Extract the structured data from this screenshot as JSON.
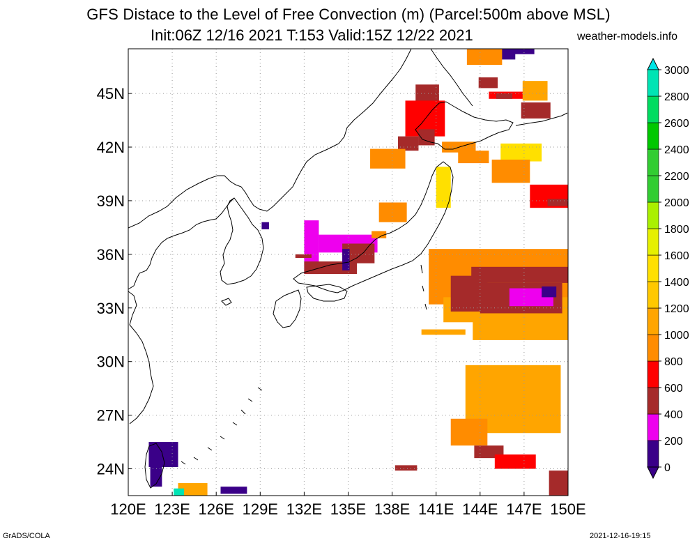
{
  "title": {
    "line1": "GFS Distace to the Level of Free Convection (m) (Parcel:500m above MSL)",
    "line2": "Init:06Z 12/16 2021 T:153 Valid:15Z 12/22 2021",
    "site": "weather-models.info"
  },
  "footer": {
    "left": "GrADS/COLA",
    "right": "2021-12-16-19:15"
  },
  "map": {
    "lon_min": 120,
    "lon_max": 150,
    "lat_min": 22.5,
    "lat_max": 47.5,
    "lon_ticks": [
      {
        "v": 120,
        "label": "120E"
      },
      {
        "v": 123,
        "label": "123E"
      },
      {
        "v": 126,
        "label": "126E"
      },
      {
        "v": 129,
        "label": "129E"
      },
      {
        "v": 132,
        "label": "132E"
      },
      {
        "v": 135,
        "label": "135E"
      },
      {
        "v": 138,
        "label": "138E"
      },
      {
        "v": 141,
        "label": "141E"
      },
      {
        "v": 144,
        "label": "144E"
      },
      {
        "v": 147,
        "label": "147E"
      },
      {
        "v": 150,
        "label": "150E"
      }
    ],
    "lat_ticks": [
      {
        "v": 24,
        "label": "24N"
      },
      {
        "v": 27,
        "label": "27N"
      },
      {
        "v": 30,
        "label": "30N"
      },
      {
        "v": 33,
        "label": "33N"
      },
      {
        "v": 36,
        "label": "36N"
      },
      {
        "v": 39,
        "label": "39N"
      },
      {
        "v": 42,
        "label": "42N"
      },
      {
        "v": 45,
        "label": "45N"
      }
    ],
    "patches": [
      {
        "lon": [
          139.6,
          141.2
        ],
        "lat": [
          44.3,
          45.5
        ],
        "val": 500
      },
      {
        "lon": [
          138.9,
          141.6
        ],
        "lat": [
          42.6,
          44.6
        ],
        "val": 700
      },
      {
        "lon": [
          139.8,
          140.9
        ],
        "lat": [
          42.1,
          43.0
        ],
        "val": 500
      },
      {
        "lon": [
          138.4,
          139.8
        ],
        "lat": [
          41.8,
          42.6
        ],
        "val": 400
      },
      {
        "lon": [
          136.5,
          138.9
        ],
        "lat": [
          40.8,
          41.9
        ],
        "val": 800
      },
      {
        "lon": [
          141.4,
          143.7
        ],
        "lat": [
          41.7,
          42.3
        ],
        "val": 900
      },
      {
        "lon": [
          142.5,
          144.6
        ],
        "lat": [
          41.1,
          41.8
        ],
        "val": 800
      },
      {
        "lon": [
          145.4,
          148.2
        ],
        "lat": [
          41.2,
          42.2
        ],
        "val": 1500
      },
      {
        "lon": [
          144.8,
          147.4
        ],
        "lat": [
          40.0,
          41.3
        ],
        "val": 900
      },
      {
        "lon": [
          141.0,
          142.0
        ],
        "lat": [
          38.6,
          40.9
        ],
        "val": 1500
      },
      {
        "lon": [
          147.4,
          150.0
        ],
        "lat": [
          38.6,
          39.9
        ],
        "val": 700
      },
      {
        "lon": [
          148.6,
          150.0
        ],
        "lat": [
          38.7,
          39.1
        ],
        "val": 500
      },
      {
        "lon": [
          146.8,
          148.8
        ],
        "lat": [
          43.6,
          44.5
        ],
        "val": 450
      },
      {
        "lon": [
          144.6,
          147.0
        ],
        "lat": [
          44.7,
          45.1
        ],
        "val": 600
      },
      {
        "lon": [
          146.9,
          148.6
        ],
        "lat": [
          44.6,
          45.7
        ],
        "val": 1000
      },
      {
        "lon": [
          143.9,
          145.2
        ],
        "lat": [
          45.3,
          45.9
        ],
        "val": 550
      },
      {
        "lon": [
          132.0,
          133.0
        ],
        "lat": [
          34.9,
          37.9
        ],
        "val": 350
      },
      {
        "lon": [
          133.0,
          137.0
        ],
        "lat": [
          36.1,
          37.1
        ],
        "val": 350
      },
      {
        "lon": [
          134.6,
          136.8
        ],
        "lat": [
          35.5,
          36.6
        ],
        "val": 500
      },
      {
        "lon": [
          132.0,
          135.6
        ],
        "lat": [
          34.9,
          35.6
        ],
        "val": 500
      },
      {
        "lon": [
          131.4,
          132.5
        ],
        "lat": [
          35.8,
          36.0
        ],
        "val": 500
      },
      {
        "lon": [
          134.6,
          135.1
        ],
        "lat": [
          35.1,
          36.3
        ],
        "val": 100
      },
      {
        "lon": [
          136.6,
          137.6
        ],
        "lat": [
          36.9,
          37.3
        ],
        "val": 900
      },
      {
        "lon": [
          137.1,
          139.0
        ],
        "lat": [
          37.8,
          38.9
        ],
        "val": 900
      },
      {
        "lon": [
          129.1,
          129.6
        ],
        "lat": [
          37.4,
          37.8
        ],
        "val": 50
      },
      {
        "lon": [
          140.5,
          150.0
        ],
        "lat": [
          33.2,
          36.3
        ],
        "val": 900
      },
      {
        "lon": [
          141.5,
          150.0
        ],
        "lat": [
          32.2,
          33.6
        ],
        "val": 1000
      },
      {
        "lon": [
          143.4,
          150.0
        ],
        "lat": [
          34.4,
          35.3
        ],
        "val": 500
      },
      {
        "lon": [
          144.0,
          149.6
        ],
        "lat": [
          32.7,
          34.4
        ],
        "val": 500
      },
      {
        "lon": [
          146.0,
          149.0
        ],
        "lat": [
          33.1,
          34.1
        ],
        "val": 350
      },
      {
        "lon": [
          142.0,
          144.5
        ],
        "lat": [
          32.8,
          34.8
        ],
        "val": 500
      },
      {
        "lon": [
          148.2,
          149.2
        ],
        "lat": [
          33.6,
          34.2
        ],
        "val": 100
      },
      {
        "lon": [
          143.5,
          150.0
        ],
        "lat": [
          31.2,
          32.4
        ],
        "val": 1000
      },
      {
        "lon": [
          140.0,
          143.0
        ],
        "lat": [
          31.5,
          31.8
        ],
        "val": 1000
      },
      {
        "lon": [
          143.0,
          149.5
        ],
        "lat": [
          26.0,
          29.8
        ],
        "val": 1000
      },
      {
        "lon": [
          142.0,
          144.5
        ],
        "lat": [
          25.3,
          26.8
        ],
        "val": 800
      },
      {
        "lon": [
          143.6,
          145.6
        ],
        "lat": [
          24.6,
          25.3
        ],
        "val": 550
      },
      {
        "lon": [
          145.0,
          147.8
        ],
        "lat": [
          24.0,
          24.8
        ],
        "val": 650
      },
      {
        "lon": [
          148.7,
          150.0
        ],
        "lat": [
          22.5,
          23.9
        ],
        "val": 550
      },
      {
        "lon": [
          138.2,
          139.7
        ],
        "lat": [
          23.9,
          24.2
        ],
        "val": 550
      },
      {
        "lon": [
          121.4,
          123.4
        ],
        "lat": [
          24.1,
          25.5
        ],
        "val": 100
      },
      {
        "lon": [
          121.5,
          122.3
        ],
        "lat": [
          23.0,
          24.6
        ],
        "val": 50
      },
      {
        "lon": [
          123.4,
          125.4
        ],
        "lat": [
          22.5,
          23.2
        ],
        "val": 1000
      },
      {
        "lon": [
          126.3,
          128.1
        ],
        "lat": [
          22.6,
          23.0
        ],
        "val": 50
      },
      {
        "lon": [
          123.1,
          123.8
        ],
        "lat": [
          22.5,
          22.9
        ],
        "val": 2900
      },
      {
        "lon": [
          145.3,
          146.4
        ],
        "lat": [
          46.9,
          47.5
        ],
        "val": 50
      },
      {
        "lon": [
          143.1,
          145.5
        ],
        "lat": [
          46.6,
          47.5
        ],
        "val": 900
      },
      {
        "lon": [
          145.8,
          147.7
        ],
        "lat": [
          47.2,
          47.5
        ],
        "val": 100
      },
      {
        "lon": [
          145.1,
          146.2
        ],
        "lat": [
          44.7,
          45.0
        ],
        "val": 500
      }
    ]
  },
  "legend": {
    "labels": [
      "0",
      "200",
      "400",
      "600",
      "800",
      "1000",
      "1200",
      "1400",
      "1600",
      "1800",
      "2000",
      "2200",
      "2400",
      "2600",
      "2800",
      "3000"
    ],
    "colors": [
      "#3a0088",
      "#ee00ee",
      "#a52a2a",
      "#ff0000",
      "#ff8c00",
      "#ffa500",
      "#ffc800",
      "#ffe000",
      "#e6f000",
      "#aaf000",
      "#32cd32",
      "#32cd32",
      "#00c800",
      "#00dc60",
      "#00e4b4",
      "#00e6e6"
    ]
  }
}
